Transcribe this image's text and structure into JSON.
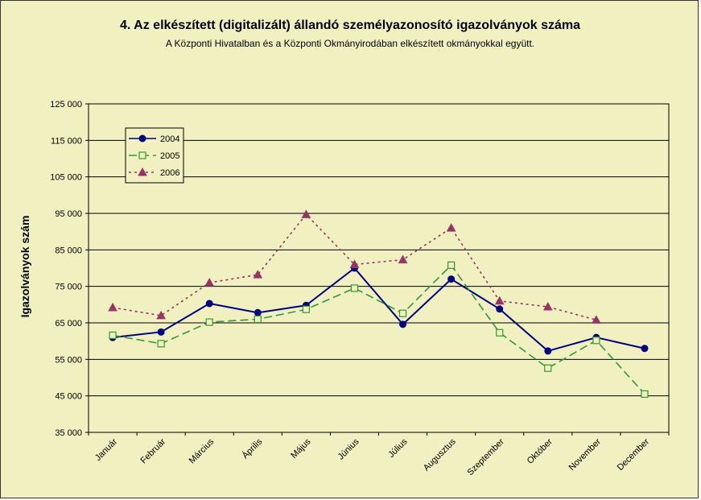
{
  "chart_data": {
    "type": "line",
    "title": "4. Az elkészített (digitalizált) állandó személyazonosító igazolványok száma",
    "subtitle": "A Központi Hivatalban és a Központi Okmányirodában elkészített okmányokkal együtt.",
    "ylabel": "Igazolványok szám",
    "ylim": [
      35000,
      125000
    ],
    "yticks": [
      "35 000",
      "45 000",
      "55 000",
      "65 000",
      "75 000",
      "85 000",
      "95 000",
      "105 000",
      "115 000",
      "125 000"
    ],
    "grid": true,
    "legend_position": "top-left",
    "categories": [
      "Január",
      "Február",
      "Március",
      "Április",
      "Május",
      "Június",
      "Július",
      "Augusztus",
      "Szeptember",
      "Október",
      "November",
      "December"
    ],
    "series": [
      {
        "name": "2004",
        "color": "#000080",
        "marker": "circle",
        "line": "solid",
        "values": [
          61000,
          62500,
          70300,
          67800,
          69800,
          80000,
          64600,
          77000,
          68800,
          57300,
          61000,
          58000
        ]
      },
      {
        "name": "2005",
        "color": "#339933",
        "marker": "square",
        "line": "dashed",
        "values": [
          61600,
          59300,
          65200,
          66000,
          68700,
          74500,
          67600,
          80800,
          62300,
          52600,
          60200,
          45500
        ]
      },
      {
        "name": "2006",
        "color": "#993366",
        "marker": "triangle",
        "line": "dotted",
        "values": [
          69200,
          67000,
          76000,
          78200,
          94700,
          81000,
          82300,
          91000,
          71000,
          69400,
          65800,
          null
        ]
      }
    ]
  }
}
